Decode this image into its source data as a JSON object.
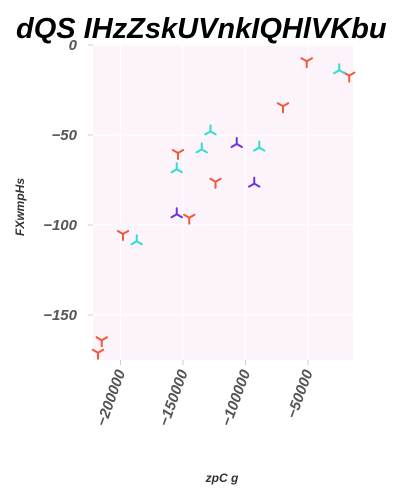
{
  "chart_data": {
    "type": "scatter",
    "title": "dQS IHzZskUVnkIQHlVKbu",
    "xlabel": "zpC g",
    "ylabel": "FXwmpHs",
    "xlim": [
      -222000,
      -14000
    ],
    "ylim": [
      -175,
      0
    ],
    "xticks": [
      -200000,
      -150000,
      -100000,
      -50000
    ],
    "xtick_labels": [
      "−200000",
      "−150000",
      "−100000",
      "−50000"
    ],
    "yticks": [
      0,
      -50,
      -100,
      -150
    ],
    "ytick_labels": [
      "0",
      "−50",
      "−100",
      "−150"
    ],
    "grid": true,
    "colors": {
      "background": "#fdf3fb",
      "grid": "#ffffff"
    },
    "series": [
      {
        "marker": "tri_down",
        "color": "#f05a3a",
        "points": [
          {
            "x": -218000,
            "y": -171
          },
          {
            "x": -215000,
            "y": -164
          },
          {
            "x": -198000,
            "y": -105
          },
          {
            "x": -154000,
            "y": -60
          },
          {
            "x": -145000,
            "y": -96
          },
          {
            "x": -124000,
            "y": -76
          },
          {
            "x": -70000,
            "y": -34
          },
          {
            "x": -51000,
            "y": -9
          },
          {
            "x": -17000,
            "y": -17
          }
        ]
      },
      {
        "marker": "tri_up",
        "color": "#2fded0",
        "points": [
          {
            "x": -187000,
            "y": -109
          },
          {
            "x": -155000,
            "y": -69
          },
          {
            "x": -135000,
            "y": -58
          },
          {
            "x": -128000,
            "y": -48
          },
          {
            "x": -89000,
            "y": -57
          },
          {
            "x": -25000,
            "y": -14
          }
        ]
      },
      {
        "marker": "tri_up",
        "color": "#6e34e0",
        "points": [
          {
            "x": -155000,
            "y": -94
          },
          {
            "x": -107000,
            "y": -55
          },
          {
            "x": -93000,
            "y": -77
          }
        ]
      }
    ]
  }
}
